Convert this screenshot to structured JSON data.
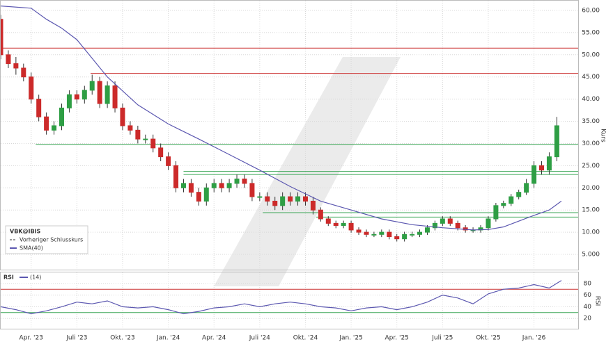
{
  "chart_data": [
    {
      "type": "candlestick",
      "symbol": "VBK@IBIS",
      "previous_close_label": "Vorheriger Schlusskurs",
      "y_label": "Kurs",
      "up_color": "#2e9e44",
      "down_color": "#cc2a2a",
      "x": [
        0,
        0.5,
        1,
        1.5,
        2,
        2.5,
        3,
        3.5,
        4,
        4.5,
        5,
        5.5,
        6,
        6.5,
        7,
        7.5,
        8,
        8.5,
        9,
        9.5,
        10,
        10.5,
        11,
        11.5,
        12,
        12.5,
        13,
        13.5,
        14,
        14.5,
        15,
        15.5,
        16,
        16.5,
        17,
        17.5,
        18,
        18.5,
        19,
        19.5,
        20,
        20.5,
        21,
        21.5,
        22,
        22.5,
        23,
        23.5,
        24,
        24.5,
        25,
        25.5,
        26,
        26.5,
        27,
        27.5,
        28,
        28.5,
        29,
        29.5,
        30,
        30.5,
        31,
        31.5,
        32,
        32.5,
        33,
        33.5,
        34,
        34.5,
        35,
        35.5,
        36,
        36.5
      ],
      "open": [
        58,
        50,
        48,
        47,
        45,
        40,
        36,
        33,
        34,
        38,
        41,
        40,
        42,
        44,
        39,
        43,
        38,
        34,
        33,
        31,
        31,
        29,
        27,
        25,
        20,
        21,
        19,
        17,
        20,
        21,
        20,
        21,
        22,
        21,
        18,
        18,
        17,
        16,
        18,
        17,
        18,
        17,
        15,
        13,
        12,
        11.5,
        12,
        10.5,
        10,
        9.5,
        9.5,
        10,
        9,
        8.5,
        9.5,
        9.5,
        10,
        11,
        12,
        13,
        12,
        11,
        10.5,
        10.5,
        11,
        13,
        16,
        16.5,
        18,
        19,
        21,
        25,
        24,
        27
      ],
      "high": [
        59,
        51,
        49.5,
        48,
        46,
        41,
        37,
        35,
        39,
        42,
        42,
        43,
        45.5,
        45,
        44,
        44,
        39,
        35,
        34,
        32,
        32,
        30,
        28,
        26,
        22,
        22,
        20,
        21,
        22,
        22,
        22,
        23,
        23,
        22,
        19,
        19,
        18,
        19,
        19,
        19,
        19,
        18,
        15.6,
        13.6,
        12.6,
        12.6,
        12.6,
        11.1,
        10.6,
        10.1,
        10.6,
        10.6,
        9.6,
        10.1,
        10.1,
        10.6,
        11.6,
        12.6,
        13.6,
        13.6,
        12.6,
        11.6,
        11.1,
        11.6,
        13.6,
        16.6,
        17.1,
        18.6,
        19.6,
        22,
        26,
        26,
        28,
        36
      ],
      "low": [
        49,
        47,
        45.5,
        44,
        39,
        35,
        32,
        32,
        33,
        37,
        39,
        39,
        41,
        38,
        38,
        37,
        33,
        32,
        30,
        30,
        28,
        26,
        24,
        19,
        19,
        18,
        16,
        16,
        19,
        19,
        19,
        20,
        20,
        17,
        17,
        16,
        15,
        15,
        16,
        16,
        16,
        14,
        12.4,
        11.4,
        10.9,
        10.9,
        9.9,
        9.4,
        8.9,
        8.9,
        8.9,
        8.4,
        7.9,
        7.9,
        8.9,
        8.9,
        9.4,
        10.4,
        11.4,
        11.4,
        10.4,
        9.9,
        9.9,
        9.9,
        10.4,
        12.4,
        15.4,
        15.9,
        17.4,
        18.4,
        20,
        23,
        23,
        26
      ],
      "close": [
        50,
        48,
        47,
        45,
        40,
        36,
        33,
        34,
        38,
        41,
        40,
        42,
        44,
        39,
        43,
        38,
        34,
        33,
        31,
        31,
        29,
        27,
        25,
        20,
        21,
        19,
        17,
        20,
        21,
        20,
        21,
        22,
        21,
        18,
        18,
        17,
        16,
        18,
        17,
        18,
        17,
        15,
        13,
        12,
        11.5,
        12,
        10.5,
        10,
        9.5,
        9.5,
        10,
        9,
        8.5,
        9.5,
        9.5,
        10,
        11,
        12,
        13,
        12,
        11,
        10.5,
        10.5,
        11,
        13,
        16,
        16.5,
        18,
        19,
        21,
        25,
        24,
        27,
        34
      ],
      "series": [
        {
          "name": "SMA(40)",
          "color": "#5b57b0",
          "x": [
            0,
            2,
            3,
            4,
            5,
            7,
            9,
            11,
            13,
            15,
            17,
            19,
            21,
            23,
            25,
            27,
            29,
            31,
            32,
            33,
            34,
            35,
            36,
            36.8
          ],
          "values": [
            61,
            60.5,
            58,
            56,
            53.4,
            45,
            38.7,
            34.4,
            31,
            27.5,
            24,
            20.3,
            17,
            15,
            13,
            11.7,
            11,
            10.5,
            10.6,
            11.2,
            12.5,
            13.8,
            15,
            17
          ]
        }
      ],
      "levels": [
        {
          "value": 51.5,
          "color": "#cc3333",
          "x0": 0
        },
        {
          "value": 45.8,
          "color": "#cc3333",
          "x0": 5.9
        },
        {
          "value": 29.8,
          "color": "#3aa655",
          "x0": 2.3
        },
        {
          "value": 23.7,
          "color": "#3aa655",
          "x0": 12
        },
        {
          "value": 23,
          "color": "#3aa655",
          "x0": 12
        },
        {
          "value": 14.4,
          "color": "#3aa655",
          "x0": 17.2
        },
        {
          "value": 13.4,
          "color": "#3aa655",
          "x0": 20.7
        }
      ],
      "xlim": [
        0,
        37.9
      ],
      "ylim": [
        1.56,
        62.19
      ],
      "yticks": [
        {
          "value": 5,
          "label": "5.000"
        },
        {
          "value": 10,
          "label": "10.00"
        },
        {
          "value": 15,
          "label": "15.00"
        },
        {
          "value": 20,
          "label": "20.00"
        },
        {
          "value": 25,
          "label": "25.00"
        },
        {
          "value": 30,
          "label": "30.00"
        },
        {
          "value": 35,
          "label": "35.00"
        },
        {
          "value": 40,
          "label": "40.00"
        },
        {
          "value": 45,
          "label": "45.00"
        },
        {
          "value": 50,
          "label": "50.00"
        },
        {
          "value": 55,
          "label": "55.00"
        },
        {
          "value": 60,
          "label": "60.00"
        }
      ],
      "xticks": [
        {
          "value": 2,
          "label": "Apr. '23"
        },
        {
          "value": 5,
          "label": "Juli '23"
        },
        {
          "value": 8,
          "label": "Okt. '23"
        },
        {
          "value": 11,
          "label": "Jan. '24"
        },
        {
          "value": 14,
          "label": "Apr. '24"
        },
        {
          "value": 17,
          "label": "Juli '24"
        },
        {
          "value": 20,
          "label": "Okt. '24"
        },
        {
          "value": 23,
          "label": "Jan. '25"
        },
        {
          "value": 26,
          "label": "Apr. '25"
        },
        {
          "value": 29,
          "label": "Juli '25"
        },
        {
          "value": 32,
          "label": "Okt. '25"
        },
        {
          "value": 35,
          "label": "Jan. '26"
        }
      ],
      "grid": true
    },
    {
      "type": "line",
      "title": "RSI",
      "y_label": "RSI",
      "series": [
        {
          "name": "(14)",
          "color": "#5b57b0",
          "x": [
            0,
            1,
            2,
            3,
            4,
            5,
            6,
            7,
            8,
            9,
            10,
            11,
            12,
            13,
            14,
            15,
            16,
            17,
            18,
            19,
            20,
            21,
            22,
            23,
            24,
            25,
            26,
            27,
            28,
            29,
            30,
            31,
            32,
            33,
            34,
            35,
            36,
            36.8
          ],
          "values": [
            40,
            35,
            28,
            33,
            40,
            48,
            45,
            50,
            40,
            38,
            40,
            35,
            28,
            32,
            38,
            40,
            45,
            40,
            45,
            48,
            45,
            40,
            38,
            33,
            38,
            40,
            35,
            40,
            48,
            60,
            55,
            45,
            62,
            70,
            72,
            78,
            72,
            85
          ]
        }
      ],
      "levels": [
        {
          "value": 70,
          "color": "#cc3333",
          "x0": 0
        },
        {
          "value": 30,
          "color": "#3aa655",
          "x0": 0
        }
      ],
      "xlim": [
        0,
        37.9
      ],
      "ylim": [
        1.2,
        98.8
      ],
      "yticks": [
        20,
        40,
        60,
        80
      ],
      "grid": true
    }
  ]
}
